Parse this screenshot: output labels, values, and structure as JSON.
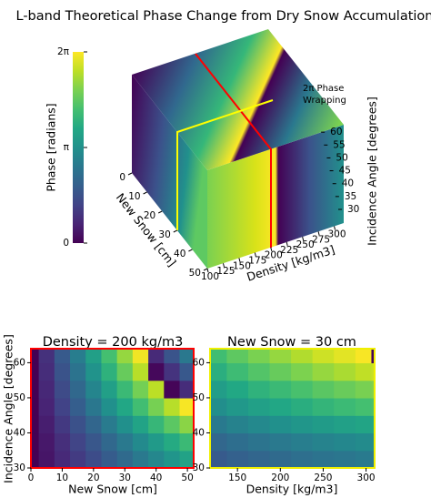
{
  "chart_data": [
    {
      "type": "cube3d",
      "title": "L-band Theoretical Phase Change from Dry Snow Accumulation",
      "colormap": "viridis",
      "colorbar": {
        "label": "Phase [radians]",
        "lim": [
          0,
          6.2832
        ],
        "ticks": [
          0,
          {
            "value": 3.1416,
            "label": "π"
          },
          {
            "value": 6.2832,
            "label": "2π"
          }
        ]
      },
      "xlabel": "New Snow [cm]",
      "xlim": [
        0,
        50
      ],
      "xticks": [
        0,
        10,
        20,
        30,
        40,
        50
      ],
      "ylabel": "Density [kg/m3]",
      "ylim": [
        100,
        315
      ],
      "yticks": [
        100,
        125,
        150,
        175,
        200,
        225,
        250,
        275,
        300
      ],
      "zlabel": "Incidence Angle [degrees]",
      "zlim": [
        30,
        65
      ],
      "zticks": [
        30,
        35,
        40,
        45,
        50,
        55,
        60
      ],
      "annotation": [
        "2π Phase",
        "Wrapping"
      ]
    },
    {
      "type": "heatmap",
      "title": "Density = 200 kg/m3",
      "xlabel": "New Snow [cm]",
      "ylabel": "Incidence Angle [degrees]",
      "border_color": "#ff0000",
      "xlim": [
        0,
        52
      ],
      "xticks": [
        0,
        10,
        20,
        30,
        40,
        50
      ],
      "ylim": [
        30,
        64
      ],
      "yticks": [
        30,
        40,
        50,
        60
      ],
      "x": [
        0,
        5,
        10,
        15,
        20,
        25,
        30,
        35,
        40,
        45,
        50
      ],
      "y": [
        32.5,
        37.5,
        42.5,
        47.5,
        52.5,
        57.5,
        62.5
      ],
      "z": [
        [
          0,
          0.36,
          0.72,
          1.08,
          1.45,
          1.81,
          2.17,
          2.53,
          2.89,
          3.25,
          3.61
        ],
        [
          0,
          0.42,
          0.85,
          1.27,
          1.7,
          2.12,
          2.54,
          2.97,
          3.39,
          3.82,
          4.24
        ],
        [
          0,
          0.52,
          1.04,
          1.56,
          2.07,
          2.59,
          3.11,
          3.63,
          4.15,
          4.67,
          5.18
        ],
        [
          0,
          0.62,
          1.24,
          1.87,
          2.49,
          3.11,
          3.73,
          4.35,
          4.98,
          5.6,
          6.22
        ],
        [
          0,
          0.71,
          1.41,
          2.12,
          2.83,
          3.53,
          4.24,
          4.95,
          5.65,
          0.08,
          0.79
        ],
        [
          0,
          0.8,
          1.6,
          2.4,
          3.2,
          4.01,
          4.81,
          5.61,
          0.13,
          0.93,
          1.73
        ],
        [
          0,
          0.88,
          1.76,
          2.64,
          3.52,
          4.4,
          5.28,
          6.16,
          0.75,
          1.63,
          2.51
        ]
      ]
    },
    {
      "type": "heatmap",
      "title": "New Snow = 30 cm",
      "xlabel": "Density [kg/m3]",
      "border_color": "#f0f000",
      "xlim": [
        118,
        310
      ],
      "xticks": [
        150,
        200,
        250,
        300
      ],
      "ylim": [
        30,
        64
      ],
      "yticks": [
        30,
        40,
        50,
        60
      ],
      "x": [
        100,
        125,
        150,
        175,
        200,
        225,
        250,
        275,
        300,
        312.5
      ],
      "y": [
        32.5,
        37.5,
        42.5,
        47.5,
        52.5,
        57.5,
        62.5
      ],
      "z": [
        [
          1.63,
          1.78,
          1.93,
          2.06,
          2.17,
          2.28,
          2.39,
          2.47,
          2.56,
          2.6
        ],
        [
          1.91,
          2.08,
          2.26,
          2.41,
          2.54,
          2.67,
          2.79,
          2.9,
          3.0,
          3.05
        ],
        [
          2.33,
          2.55,
          2.77,
          2.95,
          3.11,
          3.27,
          3.42,
          3.55,
          3.67,
          3.73
        ],
        [
          2.8,
          3.06,
          3.32,
          3.54,
          3.73,
          3.92,
          4.1,
          4.25,
          4.4,
          4.48
        ],
        [
          3.18,
          3.48,
          3.77,
          4.03,
          4.24,
          4.45,
          4.66,
          4.83,
          5.0,
          5.09
        ],
        [
          3.61,
          3.94,
          4.28,
          4.57,
          4.81,
          5.05,
          5.29,
          5.48,
          5.68,
          5.77
        ],
        [
          3.96,
          4.33,
          4.7,
          5.02,
          5.28,
          5.54,
          5.81,
          6.02,
          6.23,
          0.06
        ]
      ]
    }
  ]
}
